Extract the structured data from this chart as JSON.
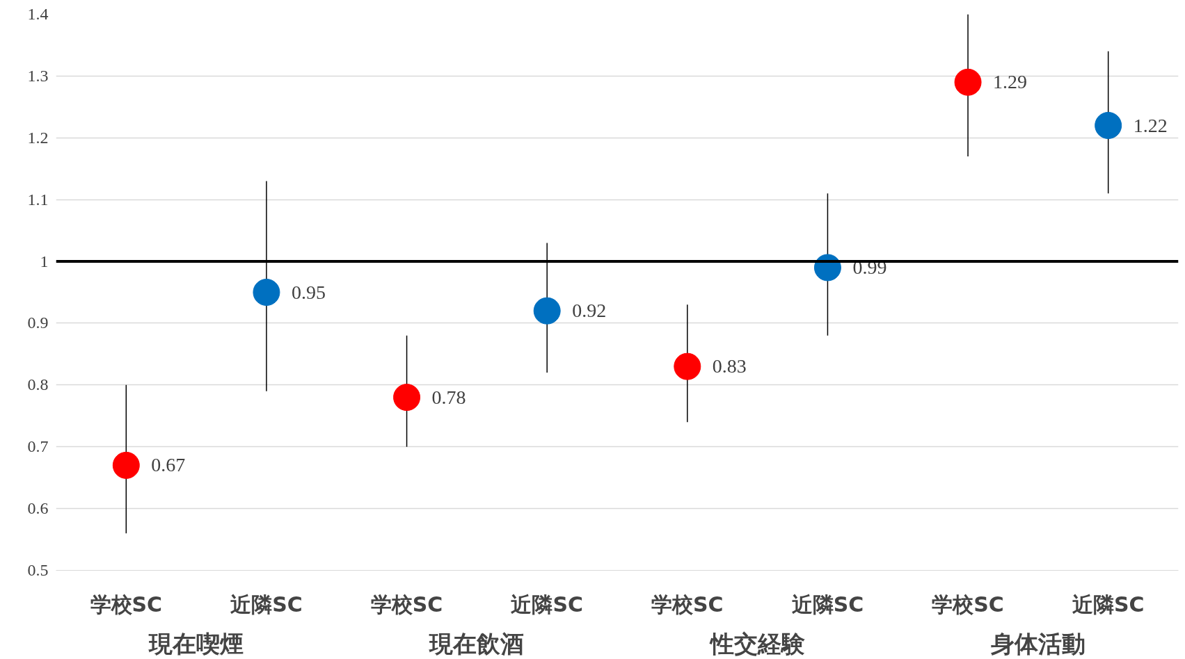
{
  "chart_data": {
    "type": "scatter",
    "categories": [
      "学校SC",
      "近隣SC",
      "学校SC",
      "近隣SC",
      "学校SC",
      "近隣SC",
      "学校SC",
      "近隣SC"
    ],
    "values": [
      0.67,
      0.95,
      0.78,
      0.92,
      0.83,
      0.99,
      1.29,
      1.22
    ],
    "colors": [
      "#ff0000",
      "#0070c0",
      "#ff0000",
      "#0070c0",
      "#ff0000",
      "#0070c0",
      "#ff0000",
      "#0070c0"
    ],
    "errors": [
      [
        0.56,
        0.8
      ],
      [
        0.79,
        1.13
      ],
      [
        0.7,
        0.88
      ],
      [
        0.82,
        1.03
      ],
      [
        0.74,
        0.93
      ],
      [
        0.88,
        1.11
      ],
      [
        1.17,
        1.4
      ],
      [
        1.11,
        1.34
      ]
    ],
    "annotations": [
      "現在喫煙",
      "現在飲酒",
      "性交経験",
      "身体活動"
    ],
    "ylim": [
      0.5,
      1.4
    ],
    "yticks": [
      0.5,
      0.6,
      0.7,
      0.8,
      0.9,
      1,
      1.1,
      1.2,
      1.3,
      1.4
    ],
    "ref_lines": [
      {
        "axis": "y",
        "value": 1,
        "label": null,
        "color": "#000000"
      }
    ],
    "data_labels": true,
    "grid": "y",
    "marker": "circle"
  }
}
